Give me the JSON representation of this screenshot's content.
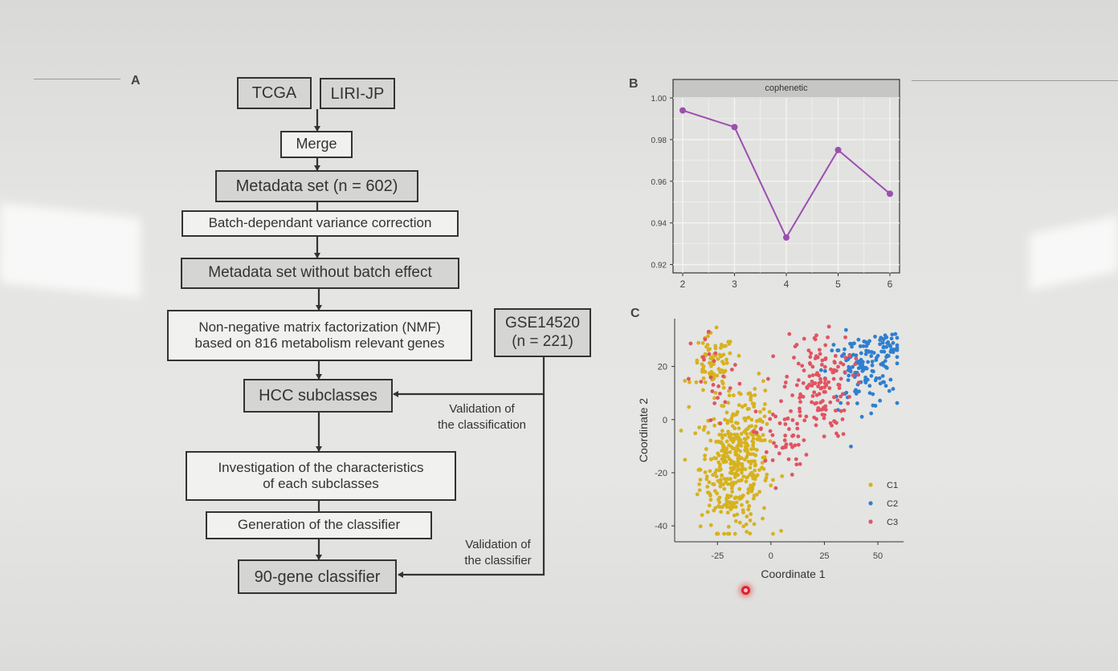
{
  "panel_a": {
    "letter": "A",
    "boxes": {
      "tcga": "TCGA",
      "liri": "LIRI-JP",
      "merge": "Merge",
      "metadata_set": "Metadata set (n = 602)",
      "batch_correction": "Batch-dependant variance correction",
      "no_batch": "Metadata set without batch effect",
      "nmf_line1": "Non-negative matrix factorization (NMF)",
      "nmf_line2": "based on 816 metabolism relevant genes",
      "gse_line1": "GSE14520",
      "gse_line2": "(n = 221)",
      "hcc": "HCC subclasses",
      "investigation_line1": "Investigation of the characteristics",
      "investigation_line2": "of each subclasses",
      "generation": "Generation of the classifier",
      "classifier": "90-gene classifier"
    },
    "labels": {
      "validation_classification_line1": "Validation of",
      "validation_classification_line2": "the classification",
      "validation_classifier_line1": "Validation of",
      "validation_classifier_line2": "the classifier"
    }
  },
  "panel_b": {
    "letter": "B",
    "chart_data": {
      "type": "line",
      "title": "cophenetic",
      "x": [
        2,
        3,
        4,
        5,
        6
      ],
      "y": [
        0.994,
        0.986,
        0.933,
        0.975,
        0.954
      ],
      "xticks": [
        "2",
        "3",
        "4",
        "5",
        "6"
      ],
      "yticks": [
        "0.92",
        "0.94",
        "0.96",
        "0.98",
        "1.00"
      ],
      "ylim": [
        0.916,
        1.0
      ],
      "color": "#9b4fb0",
      "grid": true
    }
  },
  "panel_c": {
    "letter": "C",
    "chart_data": {
      "type": "scatter",
      "xlabel": "Coordinate 1",
      "ylabel": "Coordinate 2",
      "xticks": [
        "-25",
        "0",
        "25",
        "50"
      ],
      "yticks": [
        "-40",
        "-20",
        "0",
        "20"
      ],
      "xlim": [
        -45,
        62
      ],
      "ylim": [
        -46,
        38
      ],
      "grid": false,
      "legend": "right",
      "series": [
        {
          "name": "C1",
          "color": "#d6b21f",
          "clusters": [
            {
              "cx": -17,
              "cy": -18,
              "sx": 8,
              "sy": 12,
              "n": 380
            },
            {
              "cx": -27,
              "cy": 20,
              "sx": 5,
              "sy": 6,
              "n": 80
            },
            {
              "cx": -8,
              "cy": 3,
              "sx": 4,
              "sy": 6,
              "n": 40
            }
          ]
        },
        {
          "name": "C2",
          "color": "#2f7fcf",
          "clusters": [
            {
              "cx": 42,
              "cy": 18,
              "sx": 8,
              "sy": 7,
              "n": 120
            },
            {
              "cx": 55,
              "cy": 28,
              "sx": 4,
              "sy": 3,
              "n": 40
            }
          ]
        },
        {
          "name": "C3",
          "color": "#e05461",
          "clusters": [
            {
              "cx": 22,
              "cy": 13,
              "sx": 8,
              "sy": 10,
              "n": 150
            },
            {
              "cx": 5,
              "cy": -8,
              "sx": 6,
              "sy": 8,
              "n": 45
            },
            {
              "cx": -25,
              "cy": 14,
              "sx": 6,
              "sy": 10,
              "n": 25
            }
          ]
        }
      ]
    }
  }
}
